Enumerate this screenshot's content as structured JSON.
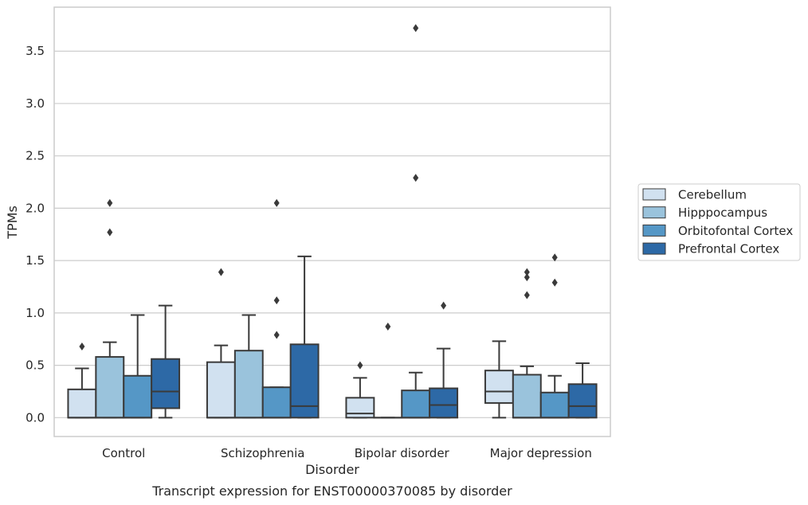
{
  "chart_data": {
    "type": "boxplot",
    "title": "Transcript expression for ENST00000370085 by disorder",
    "xlabel": "Disorder",
    "ylabel": "TPMs",
    "categories": [
      "Control",
      "Schizophrenia",
      "Bipolar disorder",
      "Major depression"
    ],
    "ylim": [
      -0.18,
      3.92
    ],
    "yticks": [
      "0.0",
      "0.5",
      "1.0",
      "1.5",
      "2.0",
      "2.5",
      "3.0",
      "3.5"
    ],
    "grid": "horizontal",
    "legend_position": "right",
    "series": [
      {
        "name": "Cerebellum",
        "color": "#d1e1f0",
        "boxes": [
          {
            "whislo": 0.0,
            "q1": 0.0,
            "med": 0.0,
            "q3": 0.27,
            "whishi": 0.47,
            "fliers": [
              0.68
            ]
          },
          {
            "whislo": 0.0,
            "q1": 0.0,
            "med": 0.0,
            "q3": 0.53,
            "whishi": 0.69,
            "fliers": [
              1.39
            ]
          },
          {
            "whislo": 0.0,
            "q1": 0.0,
            "med": 0.04,
            "q3": 0.19,
            "whishi": 0.38,
            "fliers": [
              0.5
            ]
          },
          {
            "whislo": 0.0,
            "q1": 0.14,
            "med": 0.25,
            "q3": 0.45,
            "whishi": 0.73,
            "fliers": []
          }
        ]
      },
      {
        "name": "Hipppocampus",
        "color": "#9ac3dc",
        "boxes": [
          {
            "whislo": 0.0,
            "q1": 0.0,
            "med": 0.0,
            "q3": 0.58,
            "whishi": 0.72,
            "fliers": [
              1.77,
              2.05
            ]
          },
          {
            "whislo": 0.0,
            "q1": 0.0,
            "med": 0.0,
            "q3": 0.64,
            "whishi": 0.98,
            "fliers": []
          },
          {
            "whislo": 0.0,
            "q1": 0.0,
            "med": 0.0,
            "q3": 0.0,
            "whishi": 0.0,
            "fliers": [
              0.87
            ]
          },
          {
            "whislo": 0.0,
            "q1": 0.0,
            "med": 0.0,
            "q3": 0.41,
            "whishi": 0.49,
            "fliers": [
              1.17,
              1.34,
              1.39
            ]
          }
        ]
      },
      {
        "name": "Orbitofontal Cortex",
        "color": "#5597c6",
        "boxes": [
          {
            "whislo": 0.0,
            "q1": 0.0,
            "med": 0.0,
            "q3": 0.4,
            "whishi": 0.98,
            "fliers": []
          },
          {
            "whislo": 0.0,
            "q1": 0.0,
            "med": 0.0,
            "q3": 0.29,
            "whishi": 0.29,
            "fliers": [
              0.79,
              1.12,
              2.05
            ]
          },
          {
            "whislo": 0.0,
            "q1": 0.0,
            "med": 0.0,
            "q3": 0.26,
            "whishi": 0.43,
            "fliers": [
              2.29,
              3.72
            ]
          },
          {
            "whislo": 0.0,
            "q1": 0.0,
            "med": 0.0,
            "q3": 0.24,
            "whishi": 0.4,
            "fliers": [
              1.29,
              1.53
            ]
          }
        ]
      },
      {
        "name": "Prefrontal Cortex",
        "color": "#2d69a6",
        "boxes": [
          {
            "whislo": 0.0,
            "q1": 0.09,
            "med": 0.25,
            "q3": 0.56,
            "whishi": 1.07,
            "fliers": []
          },
          {
            "whislo": 0.0,
            "q1": 0.0,
            "med": 0.11,
            "q3": 0.7,
            "whishi": 1.54,
            "fliers": []
          },
          {
            "whislo": 0.0,
            "q1": 0.0,
            "med": 0.12,
            "q3": 0.28,
            "whishi": 0.66,
            "fliers": [
              1.07
            ]
          },
          {
            "whislo": 0.0,
            "q1": 0.0,
            "med": 0.11,
            "q3": 0.32,
            "whishi": 0.52,
            "fliers": []
          }
        ]
      }
    ]
  }
}
